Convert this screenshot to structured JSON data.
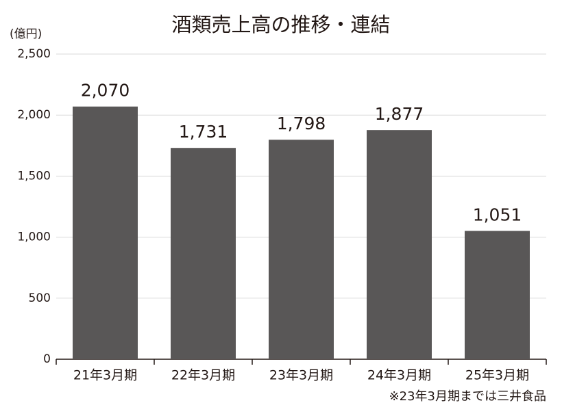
{
  "chart_data": {
    "type": "bar",
    "title": "酒類売上高の推移・連結",
    "y_axis_label": "(億円)",
    "categories": [
      "21年3月期",
      "22年3月期",
      "23年3月期",
      "24年3月期",
      "25年3月期"
    ],
    "values": [
      2070,
      1731,
      1798,
      1877,
      1051
    ],
    "value_labels": [
      "2,070",
      "1,731",
      "1,798",
      "1,877",
      "1,051"
    ],
    "color": "#595757",
    "ylim": [
      0,
      2500
    ],
    "yticks": [
      0,
      500,
      {
        "value": 1000,
        "label": "1,000"
      },
      {
        "value": 1500,
        "label": "1,500"
      },
      {
        "value": 2000,
        "label": "2,000"
      },
      {
        "value": 2500,
        "label": "2,500"
      }
    ],
    "grid": true,
    "note": "※23年3月期までは三井食品"
  }
}
